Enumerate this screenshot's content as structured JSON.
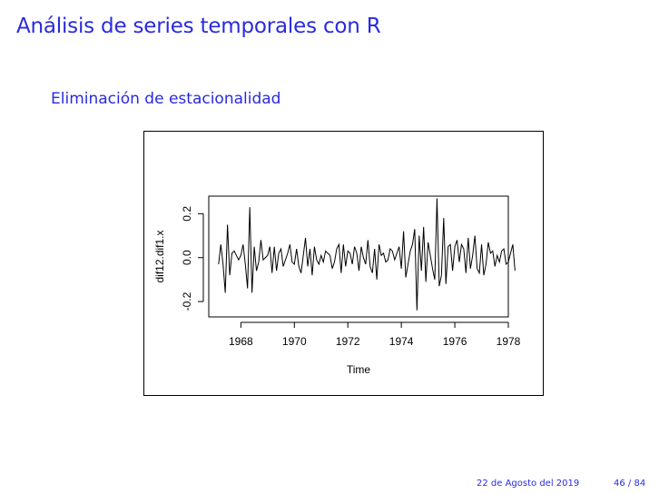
{
  "slide": {
    "title": "Análisis de series temporales con R",
    "subtitle": "Eliminación de estacionalidad"
  },
  "footer": {
    "date": "22 de Agosto del 2019",
    "page": "46 / 84"
  },
  "chart_data": {
    "type": "line",
    "xlabel": "Time",
    "ylabel": "dif12.dif1.x",
    "xlim": [
      1966.8,
      1978.0
    ],
    "ylim": [
      -0.27,
      0.28
    ],
    "x_ticks": [
      1968,
      1970,
      1972,
      1974,
      1976,
      1978
    ],
    "x_tick_labels": [
      "1968",
      "1970",
      "1972",
      "1974",
      "1976",
      "1978"
    ],
    "y_ticks": [
      -0.2,
      0.0,
      0.2
    ],
    "y_tick_labels": [
      "-0.2",
      "0.0",
      "0.2"
    ],
    "x_start": 1967.1667,
    "frequency": 12,
    "series": [
      {
        "values": [
          -0.03,
          0.06,
          -0.03,
          -0.16,
          0.15,
          -0.08,
          0.02,
          0.03,
          0.01,
          -0.01,
          0.01,
          0.06,
          -0.03,
          -0.14,
          0.23,
          -0.16,
          0.05,
          -0.06,
          -0.02,
          0.08,
          -0.01,
          0.0,
          0.01,
          0.05,
          -0.07,
          0.05,
          -0.06,
          0.02,
          0.04,
          -0.04,
          -0.01,
          0.02,
          0.06,
          -0.02,
          -0.03,
          0.04,
          -0.04,
          -0.07,
          0.01,
          0.09,
          -0.04,
          0.04,
          -0.08,
          0.05,
          -0.01,
          -0.03,
          0.01,
          -0.02,
          0.03,
          0.02,
          0.01,
          -0.05,
          -0.02,
          0.04,
          0.06,
          -0.07,
          0.06,
          -0.04,
          0.03,
          0.02,
          -0.03,
          0.05,
          0.02,
          -0.06,
          0.05,
          0.0,
          -0.03,
          0.08,
          -0.04,
          -0.07,
          0.04,
          -0.1,
          0.06,
          0.01,
          0.02,
          -0.02,
          -0.01,
          0.04,
          0.03,
          -0.01,
          0.02,
          0.05,
          -0.05,
          0.12,
          -0.09,
          -0.03,
          0.03,
          0.06,
          0.13,
          -0.24,
          0.1,
          -0.06,
          0.14,
          -0.11,
          0.07,
          0.01,
          -0.05,
          -0.1,
          0.27,
          -0.13,
          -0.08,
          0.18,
          -0.12,
          0.05,
          0.06,
          -0.06,
          0.05,
          0.08,
          -0.02,
          0.06,
          0.04,
          -0.07,
          0.09,
          -0.05,
          0.01,
          0.1,
          -0.05,
          -0.07,
          0.06,
          -0.08,
          -0.03,
          0.07,
          0.02,
          0.03,
          -0.04,
          0.01,
          -0.02,
          0.03,
          0.04,
          -0.03,
          -0.02,
          0.02,
          0.06,
          -0.06
        ]
      }
    ]
  }
}
